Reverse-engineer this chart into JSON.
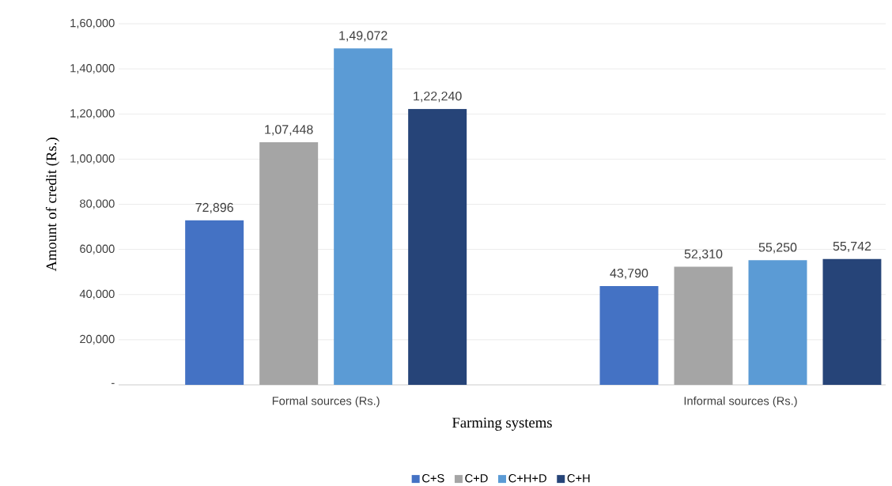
{
  "chart_data": {
    "type": "bar",
    "xlabel": "Farming systems",
    "ylabel": "Amount of credit (Rs.)",
    "categories": [
      "Formal sources (Rs.)",
      "Informal sources (Rs.)"
    ],
    "series": [
      {
        "name": "C+S",
        "color": "#4472c4",
        "values": [
          72896,
          43790
        ],
        "value_labels": [
          "72,896",
          "43,790"
        ]
      },
      {
        "name": "C+D",
        "color": "#a5a5a5",
        "values": [
          107448,
          52310
        ],
        "value_labels": [
          "1,07,448",
          "52,310"
        ]
      },
      {
        "name": "C+H+D",
        "color": "#5b9bd5",
        "values": [
          149072,
          55250
        ],
        "value_labels": [
          "1,49,072",
          "55,250"
        ]
      },
      {
        "name": "C+H",
        "color": "#264478",
        "values": [
          122240,
          55742
        ],
        "value_labels": [
          "1,22,240",
          "55,742"
        ]
      }
    ],
    "ylim": [
      0,
      160000
    ],
    "yticks": [
      {
        "value": 0,
        "label": "-"
      },
      {
        "value": 20000,
        "label": "20,000"
      },
      {
        "value": 40000,
        "label": "40,000"
      },
      {
        "value": 60000,
        "label": "60,000"
      },
      {
        "value": 80000,
        "label": "80,000"
      },
      {
        "value": 100000,
        "label": "1,00,000"
      },
      {
        "value": 120000,
        "label": "1,20,000"
      },
      {
        "value": 140000,
        "label": "1,40,000"
      },
      {
        "value": 160000,
        "label": "1,60,000"
      }
    ],
    "grid": "y",
    "legend": "bottom"
  }
}
